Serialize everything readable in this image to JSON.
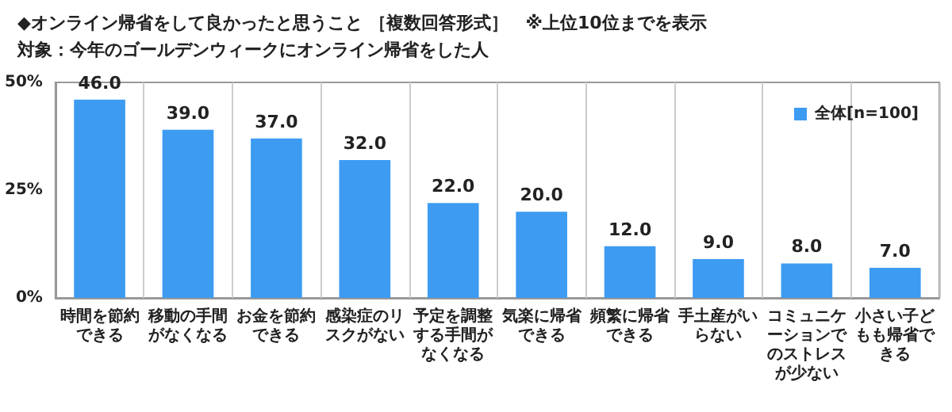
{
  "chart_data": {
    "type": "bar",
    "title": "◆オンライン帰省をして良かったと思うこと ［複数回答形式］　※上位10位までを表示",
    "subtitle": "対象：今年のゴールデンウィークにオンライン帰省をした人",
    "categories": [
      "時間を節約できる",
      "移動の手間がなくなる",
      "お金を節約できる",
      "感染症のリスクがない",
      "予定を調整する手間がなくなる",
      "気楽に帰省できる",
      "頻繁に帰省できる",
      "手土産がいらない",
      "コミュニケーションでのストレスが少ない",
      "小さい子どもも帰省できる"
    ],
    "series": [
      {
        "name": "全体[n=100]",
        "color": "#3d9bf2",
        "values": [
          46.0,
          39.0,
          37.0,
          32.0,
          22.0,
          20.0,
          12.0,
          9.0,
          8.0,
          7.0
        ],
        "value_labels": [
          "46.0",
          "39.0",
          "37.0",
          "32.0",
          "22.0",
          "20.0",
          "12.0",
          "9.0",
          "8.0",
          "7.0"
        ]
      }
    ],
    "ylim": [
      0,
      50
    ],
    "yticks": [
      {
        "value": 0,
        "label": "0%"
      },
      {
        "value": 25,
        "label": "25%"
      },
      {
        "value": 50,
        "label": "50%"
      }
    ],
    "grid": "x",
    "legend": "top right"
  }
}
